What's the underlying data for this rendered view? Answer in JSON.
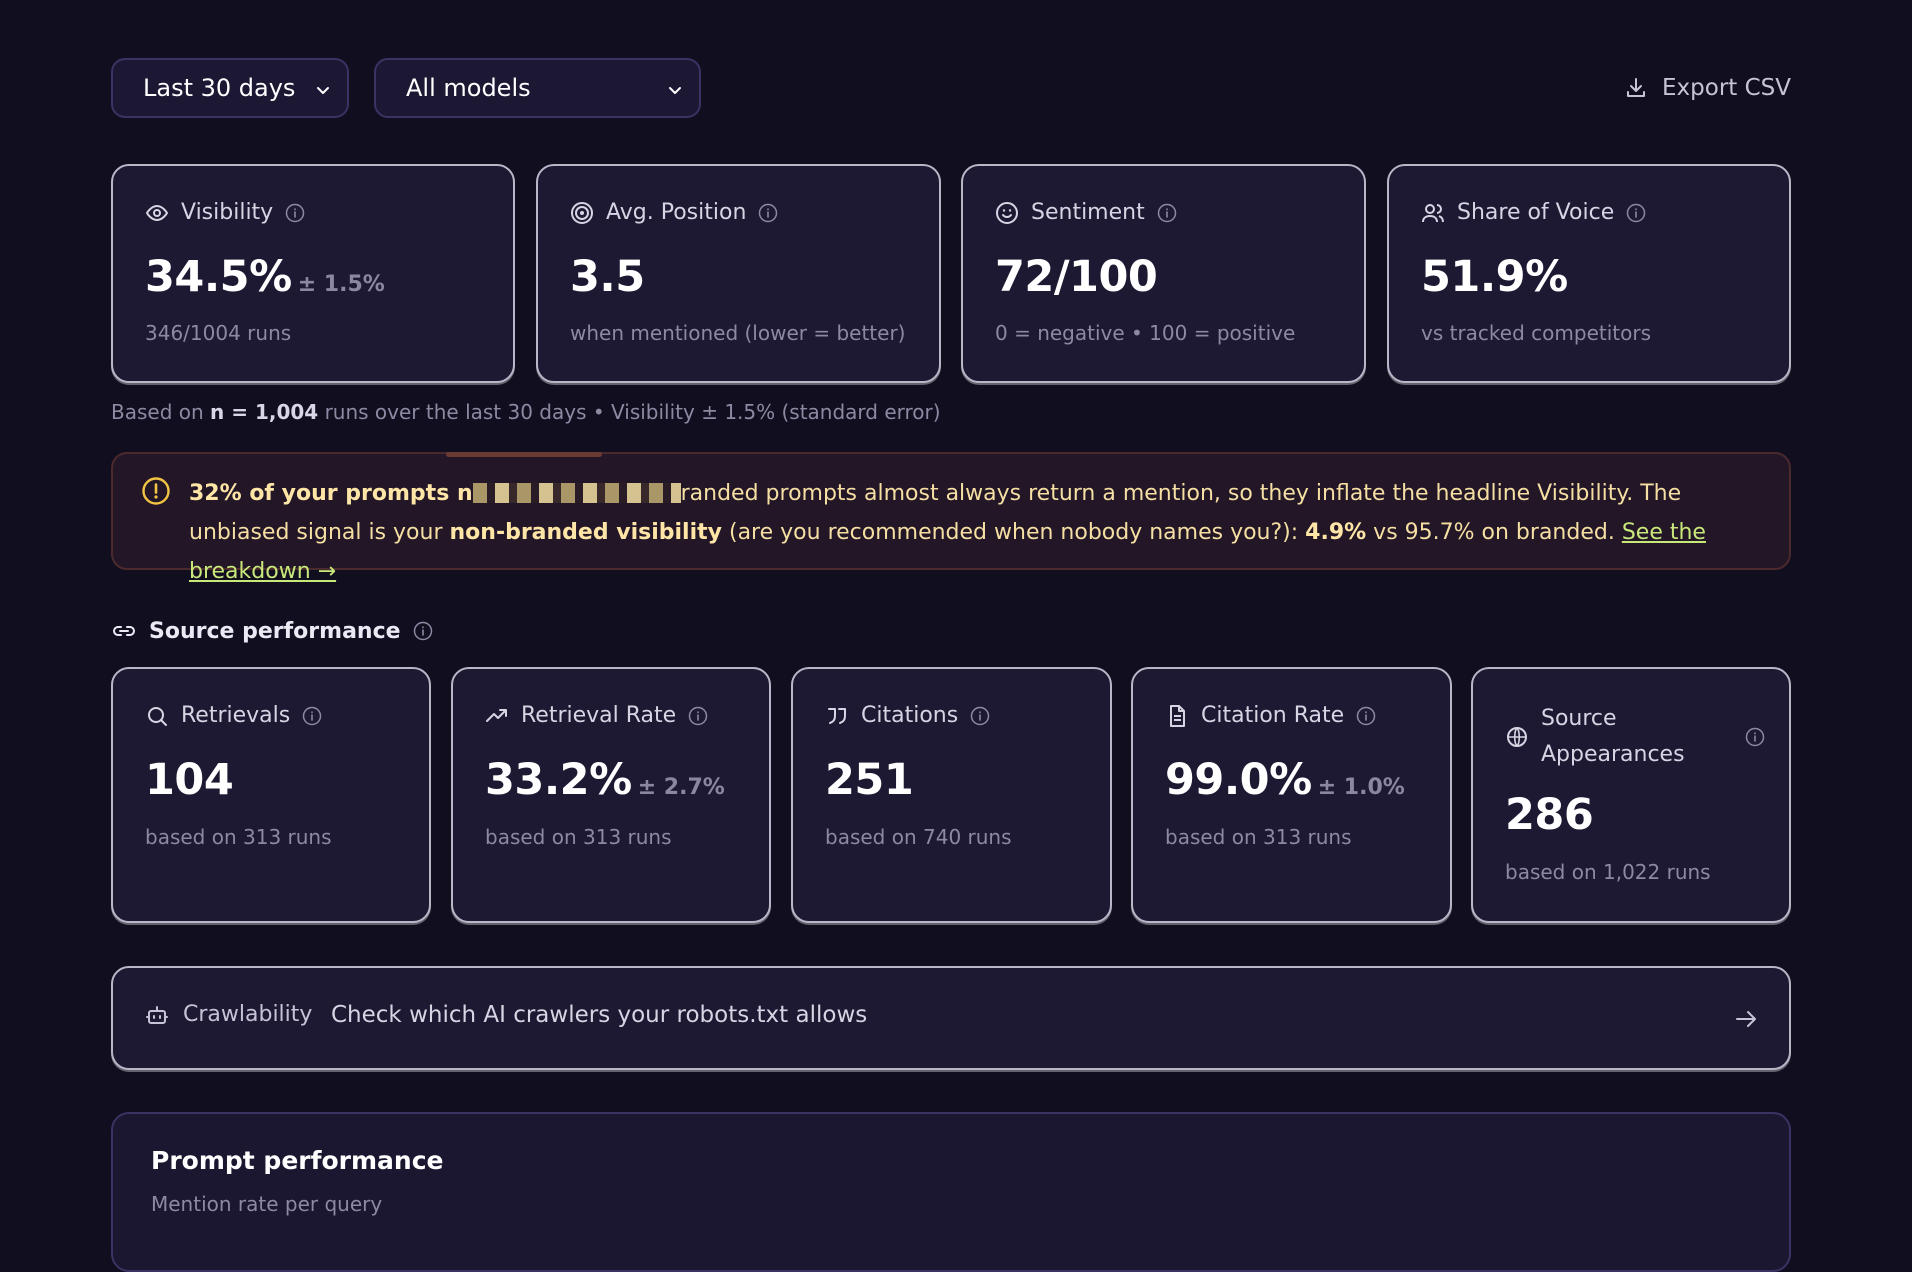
{
  "toolbar": {
    "range_label": "Last 30 days",
    "model_label": "All models",
    "export_label": "Export CSV"
  },
  "metrics": [
    {
      "label": "Visibility",
      "icon": "eye-icon",
      "value": "34.5%",
      "error": "± 1.5%",
      "sub": "346/1004 runs"
    },
    {
      "label": "Avg. Position",
      "icon": "target-icon",
      "value": "3.5",
      "error": "",
      "sub": "when mentioned (lower = better)"
    },
    {
      "label": "Sentiment",
      "icon": "smile-icon",
      "value": "72/100",
      "error": "",
      "sub": "0 = negative • 100 = positive"
    },
    {
      "label": "Share of Voice",
      "icon": "users-icon",
      "value": "51.9%",
      "error": "",
      "sub": "vs tracked competitors"
    }
  ],
  "note": {
    "prefix": "Based on ",
    "n": "n = 1,004",
    "suffix": " runs over the last 30 days • Visibility ± 1.5% (standard error)"
  },
  "warning": {
    "lead": "32% of your prompts n",
    "part1": "randed prompts almost always return a mention, so they inflate the headline Visibility. The unbiased signal is your ",
    "bold2": "non-branded visibility",
    "part2": " (are you recommended when nobody names you?): ",
    "bold3": "4.9%",
    "part3": " vs 95.7% on branded. ",
    "link": "See the breakdown →"
  },
  "source_section": {
    "title": "Source performance",
    "cards": [
      {
        "label": "Retrievals",
        "icon": "search-icon",
        "value": "104",
        "error": "",
        "sub": "based on 313 runs"
      },
      {
        "label": "Retrieval Rate",
        "icon": "trending-up-icon",
        "value": "33.2%",
        "error": "± 2.7%",
        "sub": "based on 313 runs"
      },
      {
        "label": "Citations",
        "icon": "quote-icon",
        "value": "251",
        "error": "",
        "sub": "based on 740 runs"
      },
      {
        "label": "Citation Rate",
        "icon": "document-icon",
        "value": "99.0%",
        "error": "± 1.0%",
        "sub": "based on 313 runs"
      },
      {
        "label_line1": "Source",
        "label_line2": "Appearances",
        "icon": "globe-icon",
        "value": "286",
        "error": "",
        "sub": "based on 1,022 runs"
      }
    ]
  },
  "crawl": {
    "label": "Crawlability",
    "desc": "Check which AI crawlers your robots.txt allows"
  },
  "prompt_performance": {
    "title": "Prompt performance",
    "subtitle": "Mention rate per query"
  }
}
